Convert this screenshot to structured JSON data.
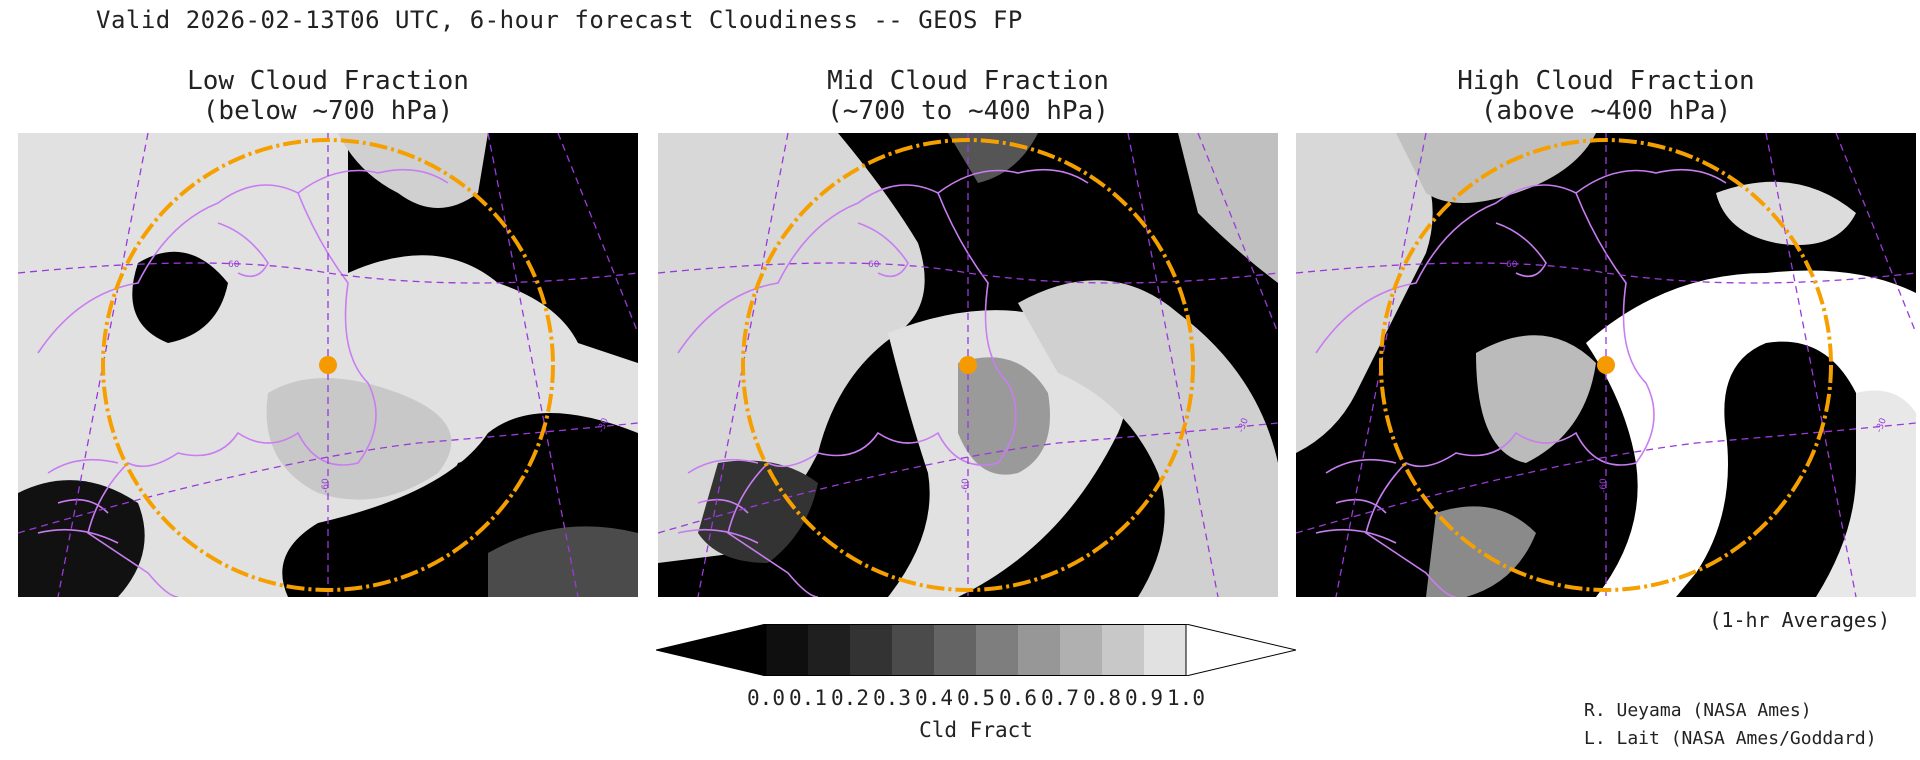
{
  "title": "Valid 2026-02-13T06 UTC, 6-hour forecast Cloudiness -- GEOS FP",
  "panels": [
    {
      "title_line1": "Low Cloud Fraction",
      "title_line2": "(below ~700 hPa)"
    },
    {
      "title_line1": "Mid Cloud Fraction",
      "title_line2": "(~700 to ~400 hPa)"
    },
    {
      "title_line1": "High Cloud Fraction",
      "title_line2": "(above ~400 hPa)"
    }
  ],
  "map_labels": {
    "lat": "60",
    "lon_left": "-60",
    "lon_right": "-30"
  },
  "averaging_note": "(1-hr Averages)",
  "colorbar": {
    "ticks": [
      "0.0",
      "0.1",
      "0.2",
      "0.3",
      "0.4",
      "0.5",
      "0.6",
      "0.7",
      "0.8",
      "0.9",
      "1.0"
    ],
    "unit": "Cld Fract",
    "colors": [
      "#000000",
      "#0f0f0f",
      "#1f1f1f",
      "#333333",
      "#4b4b4b",
      "#646464",
      "#7e7e7e",
      "#979797",
      "#b0b0b0",
      "#c8c8c8",
      "#e1e1e1",
      "#ffffff"
    ]
  },
  "colors": {
    "coastline": "#c87df0",
    "grid": "#9a3ad8",
    "range_ring": "#f5a000",
    "site_marker": "#f59a00"
  },
  "credits": [
    "R. Ueyama (NASA Ames)",
    "L. Lait (NASA Ames/Goddard)"
  ]
}
